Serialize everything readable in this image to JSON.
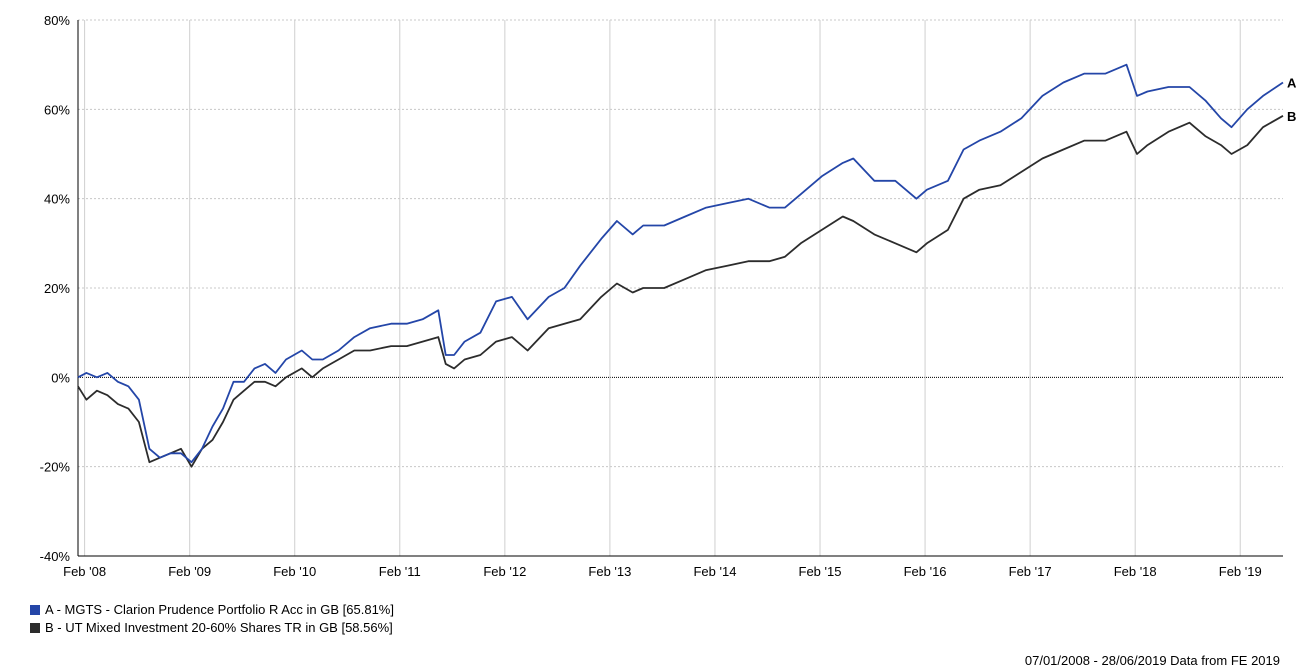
{
  "chart_data": {
    "type": "line",
    "title": "",
    "xlabel": "",
    "ylabel": "",
    "ylim": [
      -40,
      80
    ],
    "y_ticks": [
      -40,
      -20,
      0,
      20,
      40,
      60,
      80
    ],
    "y_tick_labels": [
      "-40%",
      "-20%",
      "0%",
      "20%",
      "40%",
      "60%",
      "80%"
    ],
    "x_tick_labels": [
      "Feb '08",
      "Feb '09",
      "Feb '10",
      "Feb '11",
      "Feb '12",
      "Feb '13",
      "Feb '14",
      "Feb '15",
      "Feb '16",
      "Feb '17",
      "Feb '18",
      "Feb '19"
    ],
    "x_ticks": [
      2008.083,
      2009.083,
      2010.083,
      2011.083,
      2012.083,
      2013.083,
      2014.083,
      2015.083,
      2016.083,
      2017.083,
      2018.083,
      2019.083
    ],
    "xlim": [
      2008.02,
      2019.49
    ],
    "grid": true,
    "zero_line": true,
    "x": [
      2008.02,
      2008.1,
      2008.2,
      2008.3,
      2008.4,
      2008.5,
      2008.6,
      2008.7,
      2008.8,
      2008.9,
      2009.0,
      2009.1,
      2009.2,
      2009.3,
      2009.4,
      2009.5,
      2009.6,
      2009.7,
      2009.8,
      2009.9,
      2010.0,
      2010.15,
      2010.25,
      2010.35,
      2010.5,
      2010.65,
      2010.8,
      2011.0,
      2011.15,
      2011.3,
      2011.45,
      2011.52,
      2011.6,
      2011.7,
      2011.85,
      2012.0,
      2012.15,
      2012.3,
      2012.5,
      2012.65,
      2012.8,
      2013.0,
      2013.15,
      2013.3,
      2013.4,
      2013.6,
      2013.8,
      2014.0,
      2014.2,
      2014.4,
      2014.6,
      2014.75,
      2014.9,
      2015.1,
      2015.3,
      2015.4,
      2015.6,
      2015.8,
      2016.0,
      2016.1,
      2016.3,
      2016.45,
      2016.6,
      2016.8,
      2017.0,
      2017.2,
      2017.4,
      2017.6,
      2017.8,
      2018.0,
      2018.1,
      2018.2,
      2018.4,
      2018.6,
      2018.75,
      2018.9,
      2019.0,
      2019.15,
      2019.3,
      2019.49
    ],
    "series": [
      {
        "name": "A",
        "color": "#2446a8",
        "values": [
          0,
          1,
          0,
          1,
          -1,
          -2,
          -5,
          -16,
          -18,
          -17,
          -17,
          -19,
          -16,
          -11,
          -7,
          -1,
          -1,
          2,
          3,
          1,
          4,
          6,
          4,
          4,
          6,
          9,
          11,
          12,
          12,
          13,
          15,
          5,
          5,
          8,
          10,
          17,
          18,
          13,
          18,
          20,
          25,
          31,
          35,
          32,
          34,
          34,
          36,
          38,
          39,
          40,
          38,
          38,
          41,
          45,
          48,
          49,
          44,
          44,
          40,
          42,
          44,
          51,
          53,
          55,
          58,
          63,
          66,
          68,
          68,
          70,
          63,
          64,
          65,
          65,
          62,
          58,
          56,
          60,
          63,
          66
        ]
      },
      {
        "name": "B",
        "color": "#2c2c2c",
        "values": [
          -2,
          -5,
          -3,
          -4,
          -6,
          -7,
          -10,
          -19,
          -18,
          -17,
          -16,
          -20,
          -16,
          -14,
          -10,
          -5,
          -3,
          -1,
          -1,
          -2,
          0,
          2,
          0,
          2,
          4,
          6,
          6,
          7,
          7,
          8,
          9,
          3,
          2,
          4,
          5,
          8,
          9,
          6,
          11,
          12,
          13,
          18,
          21,
          19,
          20,
          20,
          22,
          24,
          25,
          26,
          26,
          27,
          30,
          33,
          36,
          35,
          32,
          30,
          28,
          30,
          33,
          40,
          42,
          43,
          46,
          49,
          51,
          53,
          53,
          55,
          50,
          52,
          55,
          57,
          54,
          52,
          50,
          52,
          56,
          58.56
        ]
      }
    ],
    "end_labels": [
      "A",
      "B"
    ],
    "legend": {
      "placement": "bottom-left",
      "entries": [
        {
          "label": "A - MGTS - Clarion Prudence Portfolio R Acc in GB [65.81%]",
          "color": "#2446a8"
        },
        {
          "label": "B - UT Mixed Investment 20-60% Shares TR in GB [58.56%]",
          "color": "#2c2c2c"
        }
      ]
    },
    "footer": "07/01/2008 - 28/06/2019 Data from FE 2019"
  }
}
